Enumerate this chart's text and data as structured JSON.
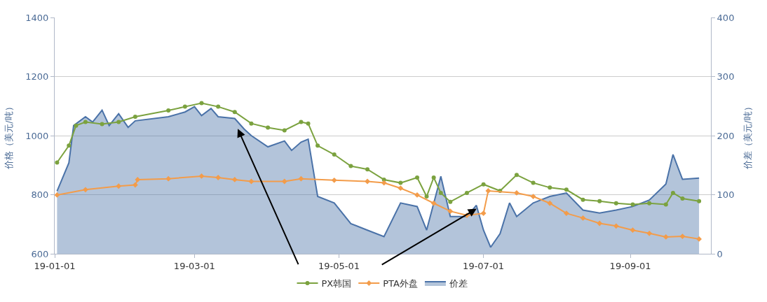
{
  "chart_data": {
    "type": "line",
    "ylabel": "价格（美元/吨）",
    "y2label": "价差（美元/吨）",
    "xlim": [
      "--01-01",
      "--10-05"
    ],
    "xticks": [
      {
        "value": "--01-01",
        "label": "19-01-01"
      },
      {
        "value": "--03-01",
        "label": "19-03-01"
      },
      {
        "value": "--05-01",
        "label": "19-05-01"
      },
      {
        "value": "--07-01",
        "label": "19-07-01"
      },
      {
        "value": "--09-01",
        "label": "19-09-01"
      }
    ],
    "ylim": [
      600,
      1400
    ],
    "yticks": [
      600,
      800,
      1000,
      1200,
      1400
    ],
    "y2lim": [
      0,
      400
    ],
    "y2ticks": [
      0,
      100,
      200,
      300,
      400
    ],
    "grid": "y",
    "legend": "bottom",
    "series": [
      {
        "name": "PX韩国",
        "color": "#7ba23f",
        "marker": "circle",
        "x": [
          "--01-02",
          "--01-07",
          "--01-10",
          "--01-14",
          "--01-21",
          "--01-28",
          "--02-04",
          "--02-18",
          "--02-25",
          "--03-04",
          "--03-11",
          "--03-18",
          "--03-25",
          "--04-01",
          "--04-08",
          "--04-15",
          "--04-18",
          "--04-22",
          "--04-29",
          "--05-06",
          "--05-13",
          "--05-20",
          "--05-27",
          "--06-03",
          "--06-07",
          "--06-10",
          "--06-13",
          "--06-17",
          "--06-24",
          "--07-01",
          "--07-08",
          "--07-15",
          "--07-22",
          "--07-29",
          "--08-05",
          "--08-12",
          "--08-19",
          "--08-26",
          "--09-02",
          "--09-09",
          "--09-16",
          "--09-19",
          "--09-23",
          "--09-30"
        ],
        "values": [
          909,
          966,
          1034,
          1046,
          1039,
          1046,
          1064,
          1085,
          1098,
          1110,
          1098,
          1080,
          1041,
          1027,
          1018,
          1046,
          1041,
          966,
          936,
          897,
          886,
          851,
          840,
          858,
          794,
          858,
          806,
          776,
          806,
          835,
          813,
          867,
          840,
          824,
          817,
          783,
          778,
          771,
          767,
          771,
          767,
          806,
          787,
          778
        ]
      },
      {
        "name": "PTA外盘",
        "color": "#f39c4a",
        "marker": "diamond",
        "x": [
          "--01-02",
          "--01-14",
          "--01-28",
          "--02-04",
          "--02-05",
          "--02-18",
          "--03-04",
          "--03-11",
          "--03-18",
          "--03-25",
          "--04-08",
          "--04-15",
          "--04-29",
          "--05-13",
          "--05-20",
          "--05-27",
          "--06-03",
          "--06-10",
          "--06-17",
          "--06-24",
          "--07-01",
          "--07-03",
          "--07-15",
          "--07-22",
          "--07-29",
          "--08-05",
          "--08-12",
          "--08-19",
          "--08-26",
          "--09-02",
          "--09-09",
          "--09-16",
          "--09-23",
          "--09-30"
        ],
        "values": [
          799,
          817,
          829,
          833,
          851,
          854,
          863,
          858,
          851,
          845,
          845,
          854,
          849,
          845,
          840,
          822,
          799,
          771,
          744,
          730,
          737,
          813,
          806,
          794,
          771,
          737,
          721,
          703,
          694,
          680,
          669,
          657,
          659,
          650
        ]
      },
      {
        "name": "价差",
        "type": "area",
        "axis": "y2",
        "color": "#4a72a8",
        "x": [
          "--01-02",
          "--01-07",
          "--01-09",
          "--01-14",
          "--01-17",
          "--01-21",
          "--01-24",
          "--01-28",
          "--02-01",
          "--02-04",
          "--02-18",
          "--02-25",
          "--03-01",
          "--03-04",
          "--03-08",
          "--03-11",
          "--03-18",
          "--03-22",
          "--03-25",
          "--04-01",
          "--04-08",
          "--04-11",
          "--04-15",
          "--04-18",
          "--04-22",
          "--04-29",
          "--05-06",
          "--05-13",
          "--05-20",
          "--05-27",
          "--06-03",
          "--06-07",
          "--06-13",
          "--06-17",
          "--06-24",
          "--06-28",
          "--07-01",
          "--07-04",
          "--07-08",
          "--07-12",
          "--07-15",
          "--07-22",
          "--07-29",
          "--08-05",
          "--08-12",
          "--08-19",
          "--08-26",
          "--09-02",
          "--09-09",
          "--09-16",
          "--09-19",
          "--09-23",
          "--09-30"
        ],
        "values": [
          106,
          154,
          217,
          232,
          223,
          243,
          217,
          237,
          214,
          225,
          232,
          240,
          249,
          234,
          246,
          232,
          229,
          211,
          200,
          181,
          191,
          175,
          189,
          194,
          97,
          86,
          51,
          40,
          29,
          86,
          80,
          40,
          131,
          63,
          63,
          82,
          40,
          11,
          34,
          86,
          63,
          86,
          97,
          103,
          74,
          69,
          74,
          80,
          91,
          118,
          168,
          126,
          128
        ]
      }
    ]
  }
}
